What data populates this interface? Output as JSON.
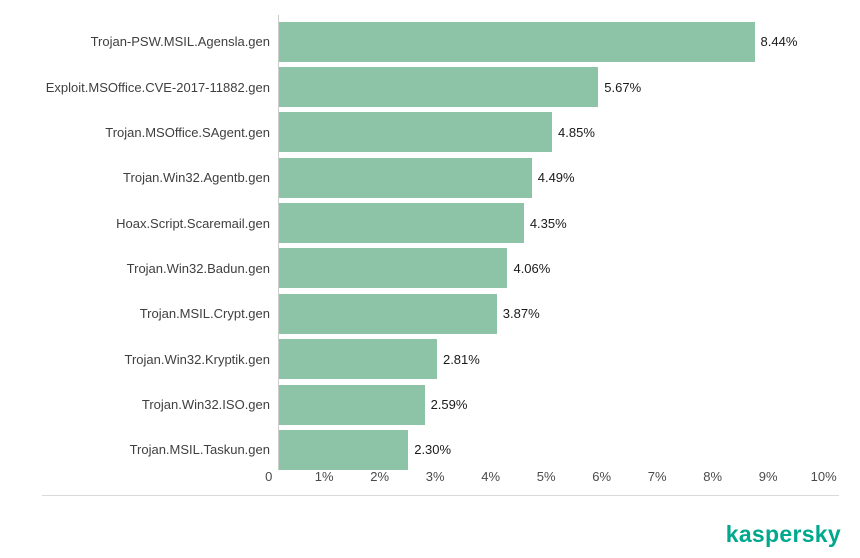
{
  "chart_data": {
    "type": "bar",
    "orientation": "horizontal",
    "title": "",
    "xlabel": "",
    "ylabel": "",
    "xlim": [
      0,
      10
    ],
    "grid": false,
    "legend": "none",
    "categories": [
      "Trojan-PSW.MSIL.Agensla.gen",
      "Exploit.MSOffice.CVE-2017-11882.gen",
      "Trojan.MSOffice.SAgent.gen",
      "Trojan.Win32.Agentb.gen",
      "Hoax.Script.Scaremail.gen",
      "Trojan.Win32.Badun.gen",
      "Trojan.MSIL.Crypt.gen",
      "Trojan.Win32.Kryptik.gen",
      "Trojan.Win32.ISO.gen",
      "Trojan.MSIL.Taskun.gen"
    ],
    "values": [
      8.44,
      5.67,
      4.85,
      4.49,
      4.35,
      4.06,
      3.87,
      2.81,
      2.59,
      2.3
    ],
    "value_labels": [
      "8.44%",
      "5.67%",
      "4.85%",
      "4.49%",
      "4.35%",
      "4.06%",
      "3.87%",
      "2.81%",
      "2.59%",
      "2.30%"
    ],
    "x_ticks": [
      "0",
      "1%",
      "2%",
      "3%",
      "4%",
      "5%",
      "6%",
      "7%",
      "8%",
      "9%",
      "10%"
    ],
    "bar_color": "#8dc3a6"
  },
  "branding": {
    "logo_text": "kaspersky",
    "logo_color": "#00a88e"
  }
}
